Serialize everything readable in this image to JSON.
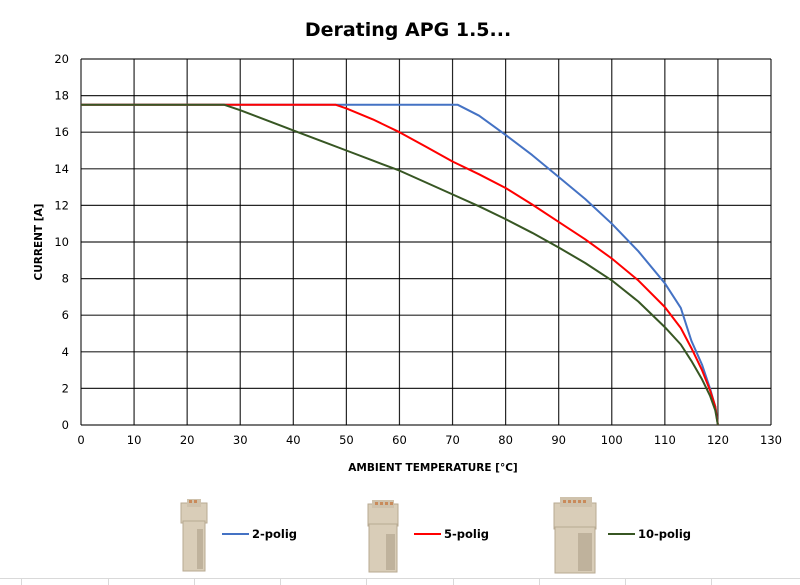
{
  "chart_data": {
    "type": "line",
    "title": "Derating APG 1.5...",
    "xlabel": "AMBIENT TEMPERATURE [°C]",
    "ylabel": "CURRENT [A]",
    "xlim": [
      0,
      130
    ],
    "ylim": [
      0,
      20
    ],
    "xticks": [
      0,
      10,
      20,
      30,
      40,
      50,
      60,
      70,
      80,
      90,
      100,
      110,
      120,
      130
    ],
    "yticks": [
      0,
      2,
      4,
      6,
      8,
      10,
      12,
      14,
      16,
      18,
      20
    ],
    "grid": true,
    "legend_position": "bottom",
    "series": [
      {
        "name": "2-polig",
        "color": "#4472C4",
        "points": [
          [
            0,
            17.5
          ],
          [
            71,
            17.5
          ],
          [
            75,
            16.9
          ],
          [
            80,
            15.85
          ],
          [
            85,
            14.75
          ],
          [
            90,
            13.55
          ],
          [
            95,
            12.35
          ],
          [
            100,
            11.0
          ],
          [
            105,
            9.5
          ],
          [
            110,
            7.75
          ],
          [
            113,
            6.4
          ],
          [
            115,
            4.6
          ],
          [
            117,
            3.3
          ],
          [
            118.5,
            2.0
          ],
          [
            119.5,
            1.0
          ],
          [
            120,
            0
          ]
        ]
      },
      {
        "name": "5-polig",
        "color": "#FF0000",
        "points": [
          [
            0,
            17.5
          ],
          [
            48,
            17.5
          ],
          [
            50,
            17.3
          ],
          [
            55,
            16.7
          ],
          [
            60,
            16.0
          ],
          [
            65,
            15.2
          ],
          [
            70,
            14.4
          ],
          [
            75,
            13.7
          ],
          [
            80,
            12.95
          ],
          [
            85,
            12.05
          ],
          [
            90,
            11.1
          ],
          [
            95,
            10.15
          ],
          [
            100,
            9.1
          ],
          [
            105,
            7.9
          ],
          [
            110,
            6.45
          ],
          [
            113,
            5.3
          ],
          [
            115,
            4.2
          ],
          [
            117,
            3.0
          ],
          [
            118.5,
            1.9
          ],
          [
            119.5,
            1.0
          ],
          [
            120,
            0
          ]
        ]
      },
      {
        "name": "10-polig",
        "color": "#375623",
        "points": [
          [
            0,
            17.5
          ],
          [
            27,
            17.5
          ],
          [
            30,
            17.2
          ],
          [
            35,
            16.65
          ],
          [
            40,
            16.1
          ],
          [
            45,
            15.55
          ],
          [
            50,
            15.0
          ],
          [
            55,
            14.45
          ],
          [
            60,
            13.9
          ],
          [
            65,
            13.25
          ],
          [
            70,
            12.6
          ],
          [
            75,
            11.95
          ],
          [
            80,
            11.25
          ],
          [
            85,
            10.5
          ],
          [
            90,
            9.7
          ],
          [
            95,
            8.85
          ],
          [
            100,
            7.9
          ],
          [
            105,
            6.75
          ],
          [
            110,
            5.35
          ],
          [
            113,
            4.4
          ],
          [
            115,
            3.5
          ],
          [
            117,
            2.5
          ],
          [
            118.5,
            1.6
          ],
          [
            119.5,
            0.8
          ],
          [
            120,
            0
          ]
        ]
      }
    ]
  },
  "legend": {
    "items": [
      {
        "label": "2-polig",
        "color": "#4472C4",
        "icon": "connector-2-pole-image"
      },
      {
        "label": "5-polig",
        "color": "#FF0000",
        "icon": "connector-5-pole-image"
      },
      {
        "label": "10-polig",
        "color": "#375623",
        "icon": "connector-10-pole-image"
      }
    ]
  },
  "colors": {
    "grid": "#000000",
    "connector_body": "#D9CDB8",
    "connector_shade": "#B8AA92",
    "sheet_gridline": "#D9D9D9"
  }
}
